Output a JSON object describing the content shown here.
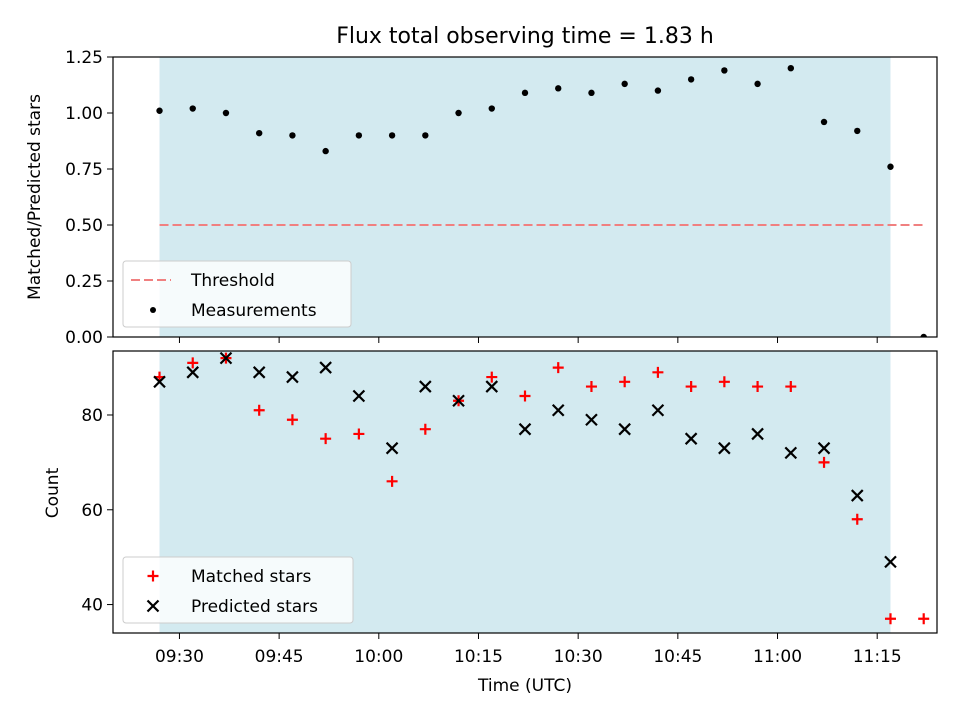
{
  "chart_data": [
    {
      "type": "scatter",
      "title": "Flux total observing time = 1.83 h",
      "xlabel": "",
      "ylabel": "Matched/Predicted stars",
      "ylim": [
        0,
        1.25
      ],
      "xlim": [
        "09:20",
        "11:24"
      ],
      "yticks": [
        "0.00",
        "0.25",
        "0.50",
        "0.75",
        "1.00",
        "1.25"
      ],
      "shaded_interval": [
        "09:27",
        "11:17"
      ],
      "shade_color": "#d3eaf0",
      "legend_position": "lower-left",
      "series": [
        {
          "name": "Threshold",
          "kind": "dashed-line",
          "color": "#f08080",
          "x": [
            "09:27",
            "11:22"
          ],
          "y": [
            0.5,
            0.5
          ]
        },
        {
          "name": "Measurements",
          "kind": "dot",
          "color": "#000000",
          "x": [
            "09:27",
            "09:32",
            "09:37",
            "09:42",
            "09:47",
            "09:52",
            "09:57",
            "10:02",
            "10:07",
            "10:12",
            "10:17",
            "10:22",
            "10:27",
            "10:32",
            "10:37",
            "10:42",
            "10:47",
            "10:52",
            "10:57",
            "11:02",
            "11:07",
            "11:12",
            "11:17",
            "11:22"
          ],
          "y": [
            1.01,
            1.02,
            1.0,
            0.91,
            0.9,
            0.83,
            0.9,
            0.9,
            0.9,
            1.0,
            1.02,
            1.09,
            1.11,
            1.09,
            1.13,
            1.1,
            1.15,
            1.19,
            1.13,
            1.2,
            0.96,
            0.92,
            0.76,
            0.0
          ]
        }
      ]
    },
    {
      "type": "scatter",
      "title": "",
      "xlabel": "Time (UTC)",
      "ylabel": "Count",
      "ylim": [
        34,
        93.5
      ],
      "xlim": [
        "09:20",
        "11:24"
      ],
      "yticks": [
        "40",
        "60",
        "80"
      ],
      "xticks": [
        "09:30",
        "09:45",
        "10:00",
        "10:15",
        "10:30",
        "10:45",
        "11:00",
        "11:15"
      ],
      "shaded_interval": [
        "09:27",
        "11:17"
      ],
      "shade_color": "#d3eaf0",
      "legend_position": "lower-left",
      "series": [
        {
          "name": "Matched stars",
          "marker": "plus",
          "color": "#ff0000",
          "x": [
            "09:27",
            "09:32",
            "09:37",
            "09:42",
            "09:47",
            "09:52",
            "09:57",
            "10:02",
            "10:07",
            "10:12",
            "10:17",
            "10:22",
            "10:27",
            "10:32",
            "10:37",
            "10:42",
            "10:47",
            "10:52",
            "10:57",
            "11:02",
            "11:07",
            "11:12",
            "11:17",
            "11:22"
          ],
          "y": [
            88,
            91,
            92,
            81,
            79,
            75,
            76,
            66,
            77,
            83,
            88,
            84,
            90,
            86,
            87,
            89,
            86,
            87,
            86,
            86,
            70,
            58,
            37,
            37
          ]
        },
        {
          "name": "Predicted stars",
          "marker": "x",
          "color": "#000000",
          "x": [
            "09:27",
            "09:32",
            "09:37",
            "09:42",
            "09:47",
            "09:52",
            "09:57",
            "10:02",
            "10:07",
            "10:12",
            "10:17",
            "10:22",
            "10:27",
            "10:32",
            "10:37",
            "10:42",
            "10:47",
            "10:52",
            "10:57",
            "11:02",
            "11:07",
            "11:12",
            "11:17"
          ],
          "y": [
            87,
            89,
            92,
            89,
            88,
            90,
            84,
            73,
            86,
            83,
            86,
            77,
            81,
            79,
            77,
            81,
            75,
            73,
            76,
            72,
            73,
            63,
            49
          ]
        }
      ]
    }
  ]
}
